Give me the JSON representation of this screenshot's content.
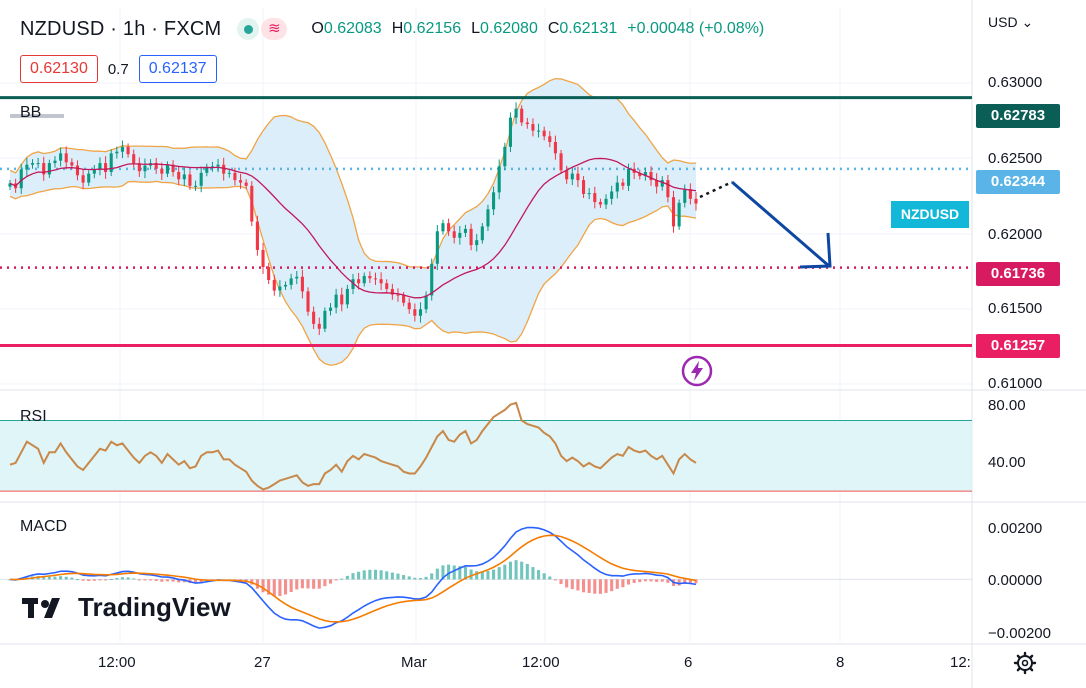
{
  "header": {
    "symbol": "NZDUSD · 1h · FXCM",
    "ohlc": [
      {
        "k": "O",
        "v": "0.62083"
      },
      {
        "k": "H",
        "v": "0.62156"
      },
      {
        "k": "L",
        "v": "0.62080"
      },
      {
        "k": "C",
        "v": "0.62131"
      }
    ],
    "change": "+0.00048 (+0.08%)"
  },
  "quotes": {
    "sell": "0.62130",
    "spread": "0.7",
    "buy": "0.62137"
  },
  "currency": "USD",
  "indicators": {
    "bb": "BB",
    "rsi": "RSI",
    "macd": "MACD"
  },
  "symbol_tag": "NZDUSD",
  "branding": "TradingView",
  "colors": {
    "up": "#089981",
    "down": "#f23645",
    "bb": "#f0a445",
    "bb_fill": "#d6ebf9",
    "basis": "#c2185b",
    "rsi": "#c8884a",
    "macd": "#2962ff",
    "signal": "#f57c00"
  },
  "chart_data": {
    "type": "candlestick",
    "price_axis": {
      "ticks": [
        "0.63000",
        "0.62500",
        "0.62000",
        "0.61500",
        "0.61000"
      ],
      "range": [
        0.60995,
        0.63335
      ]
    },
    "time_axis": {
      "labels": [
        "12:00",
        "27",
        "Mar",
        "12:00",
        "6",
        "8",
        "12:"
      ]
    },
    "levels": [
      {
        "name": "resistance",
        "value": "0.62783",
        "color": "#0b5e55",
        "style": "solid"
      },
      {
        "name": "current",
        "value": "0.62344",
        "color": "#5ab4e8",
        "style": "dotted"
      },
      {
        "name": "target",
        "value": "0.61736",
        "color": "#d81b60",
        "style": "dotted"
      },
      {
        "name": "support",
        "value": "0.61257",
        "color": "#e91e63",
        "style": "solid"
      }
    ],
    "rsi": {
      "ticks": [
        "80.00",
        "40.00"
      ],
      "range": [
        25,
        85
      ],
      "band": [
        30,
        70
      ]
    },
    "macd": {
      "ticks": [
        "0.00200",
        "0.00000",
        "−0.00200"
      ],
      "range": [
        -0.0029,
        0.0034
      ]
    },
    "closes": [
      0.62255,
      0.62225,
      0.6234,
      0.6237,
      0.6238,
      0.6238,
      0.6231,
      0.6238,
      0.62395,
      0.6244,
      0.62385,
      0.62365,
      0.62305,
      0.6226,
      0.62315,
      0.6234,
      0.6238,
      0.62325,
      0.6244,
      0.6245,
      0.6248,
      0.62435,
      0.6238,
      0.6233,
      0.62365,
      0.6238,
      0.62345,
      0.62315,
      0.6237,
      0.62325,
      0.6228,
      0.6231,
      0.6224,
      0.6224,
      0.6232,
      0.62355,
      0.6236,
      0.6237,
      0.62315,
      0.6232,
      0.62275,
      0.6226,
      0.6224,
      0.6202,
      0.61845,
      0.6174,
      0.6166,
      0.61595,
      0.6162,
      0.6163,
      0.6167,
      0.6168,
      0.6159,
      0.61465,
      0.6139,
      0.6136,
      0.6147,
      0.6149,
      0.6157,
      0.6151,
      0.61605,
      0.61665,
      0.6164,
      0.61685,
      0.6167,
      0.61665,
      0.6164,
      0.61605,
      0.6157,
      0.61565,
      0.6152,
      0.6148,
      0.6144,
      0.6148,
      0.61565,
      0.6176,
      0.6196,
      0.6201,
      0.6196,
      0.6192,
      0.6195,
      0.61975,
      0.61875,
      0.61905,
      0.6199,
      0.62095,
      0.622,
      0.6236,
      0.6248,
      0.6266,
      0.62715,
      0.6263,
      0.6262,
      0.6258,
      0.6258,
      0.62545,
      0.6251,
      0.6244,
      0.62335,
      0.6228,
      0.62315,
      0.62275,
      0.6219,
      0.62195,
      0.6214,
      0.62125,
      0.6216,
      0.62205,
      0.6226,
      0.6224,
      0.62345,
      0.6232,
      0.623,
      0.62325,
      0.62275,
      0.62235,
      0.62275,
      0.6217,
      0.6199,
      0.62135,
      0.6222,
      0.6216,
      0.62131
    ],
    "rsi_values": [
      45,
      46,
      52,
      58,
      56,
      54,
      46,
      52,
      52,
      57,
      52,
      48,
      44,
      42,
      46,
      50,
      54,
      53,
      58,
      56,
      57,
      53,
      49,
      46,
      50,
      52,
      50,
      46,
      51,
      48,
      45,
      47,
      43,
      44,
      50,
      52,
      52,
      53,
      48,
      48,
      45,
      43,
      41,
      36,
      33,
      31,
      32,
      34,
      36,
      37,
      38,
      39,
      35,
      33,
      34,
      34,
      40,
      42,
      45,
      41,
      47,
      50,
      48,
      51,
      50,
      49,
      47,
      46,
      45,
      44,
      41,
      40,
      40,
      44,
      49,
      55,
      61,
      64,
      59,
      58,
      62,
      64,
      57,
      59,
      64,
      68,
      72,
      74,
      76,
      79,
      80,
      70,
      68,
      67,
      66,
      63,
      61,
      57,
      50,
      47,
      49,
      47,
      44,
      46,
      44,
      43,
      46,
      49,
      51,
      50,
      55,
      53,
      52,
      53,
      50,
      48,
      50,
      45,
      40,
      48,
      51,
      48,
      46
    ]
  }
}
